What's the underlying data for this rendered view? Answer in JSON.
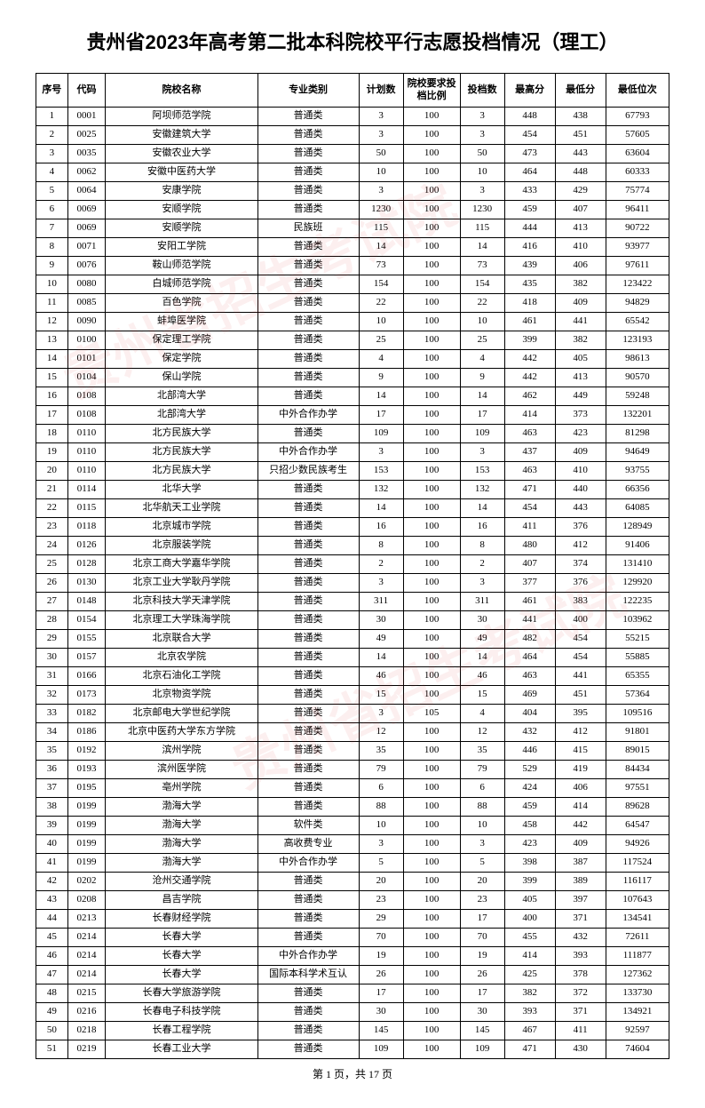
{
  "title": "贵州省2023年高考第二批本科院校平行志愿投档情况（理工）",
  "footer": "第 1 页，共 17 页",
  "watermark": "贵州省招生考试院",
  "columns": [
    {
      "label": "序号",
      "width": "5%"
    },
    {
      "label": "代码",
      "width": "6%"
    },
    {
      "label": "院校名称",
      "width": "24%"
    },
    {
      "label": "专业类别",
      "width": "16%"
    },
    {
      "label": "计划数",
      "width": "7%"
    },
    {
      "label": "院校要求投档比例",
      "width": "9%"
    },
    {
      "label": "投档数",
      "width": "7%"
    },
    {
      "label": "最高分",
      "width": "8%"
    },
    {
      "label": "最低分",
      "width": "8%"
    },
    {
      "label": "最低位次",
      "width": "10%"
    }
  ],
  "rows": [
    [
      "1",
      "0001",
      "阿坝师范学院",
      "普通类",
      "3",
      "100",
      "3",
      "448",
      "438",
      "67793"
    ],
    [
      "2",
      "0025",
      "安徽建筑大学",
      "普通类",
      "3",
      "100",
      "3",
      "454",
      "451",
      "57605"
    ],
    [
      "3",
      "0035",
      "安徽农业大学",
      "普通类",
      "50",
      "100",
      "50",
      "473",
      "443",
      "63604"
    ],
    [
      "4",
      "0062",
      "安徽中医药大学",
      "普通类",
      "10",
      "100",
      "10",
      "464",
      "448",
      "60333"
    ],
    [
      "5",
      "0064",
      "安康学院",
      "普通类",
      "3",
      "100",
      "3",
      "433",
      "429",
      "75774"
    ],
    [
      "6",
      "0069",
      "安顺学院",
      "普通类",
      "1230",
      "100",
      "1230",
      "459",
      "407",
      "96411"
    ],
    [
      "7",
      "0069",
      "安顺学院",
      "民族班",
      "115",
      "100",
      "115",
      "444",
      "413",
      "90722"
    ],
    [
      "8",
      "0071",
      "安阳工学院",
      "普通类",
      "14",
      "100",
      "14",
      "416",
      "410",
      "93977"
    ],
    [
      "9",
      "0076",
      "鞍山师范学院",
      "普通类",
      "73",
      "100",
      "73",
      "439",
      "406",
      "97611"
    ],
    [
      "10",
      "0080",
      "白城师范学院",
      "普通类",
      "154",
      "100",
      "154",
      "435",
      "382",
      "123422"
    ],
    [
      "11",
      "0085",
      "百色学院",
      "普通类",
      "22",
      "100",
      "22",
      "418",
      "409",
      "94829"
    ],
    [
      "12",
      "0090",
      "蚌埠医学院",
      "普通类",
      "10",
      "100",
      "10",
      "461",
      "441",
      "65542"
    ],
    [
      "13",
      "0100",
      "保定理工学院",
      "普通类",
      "25",
      "100",
      "25",
      "399",
      "382",
      "123193"
    ],
    [
      "14",
      "0101",
      "保定学院",
      "普通类",
      "4",
      "100",
      "4",
      "442",
      "405",
      "98613"
    ],
    [
      "15",
      "0104",
      "保山学院",
      "普通类",
      "9",
      "100",
      "9",
      "442",
      "413",
      "90570"
    ],
    [
      "16",
      "0108",
      "北部湾大学",
      "普通类",
      "14",
      "100",
      "14",
      "462",
      "449",
      "59248"
    ],
    [
      "17",
      "0108",
      "北部湾大学",
      "中外合作办学",
      "17",
      "100",
      "17",
      "414",
      "373",
      "132201"
    ],
    [
      "18",
      "0110",
      "北方民族大学",
      "普通类",
      "109",
      "100",
      "109",
      "463",
      "423",
      "81298"
    ],
    [
      "19",
      "0110",
      "北方民族大学",
      "中外合作办学",
      "3",
      "100",
      "3",
      "437",
      "409",
      "94649"
    ],
    [
      "20",
      "0110",
      "北方民族大学",
      "只招少数民族考生",
      "153",
      "100",
      "153",
      "463",
      "410",
      "93755"
    ],
    [
      "21",
      "0114",
      "北华大学",
      "普通类",
      "132",
      "100",
      "132",
      "471",
      "440",
      "66356"
    ],
    [
      "22",
      "0115",
      "北华航天工业学院",
      "普通类",
      "14",
      "100",
      "14",
      "454",
      "443",
      "64085"
    ],
    [
      "23",
      "0118",
      "北京城市学院",
      "普通类",
      "16",
      "100",
      "16",
      "411",
      "376",
      "128949"
    ],
    [
      "24",
      "0126",
      "北京服装学院",
      "普通类",
      "8",
      "100",
      "8",
      "480",
      "412",
      "91406"
    ],
    [
      "25",
      "0128",
      "北京工商大学嘉华学院",
      "普通类",
      "2",
      "100",
      "2",
      "407",
      "374",
      "131410"
    ],
    [
      "26",
      "0130",
      "北京工业大学耿丹学院",
      "普通类",
      "3",
      "100",
      "3",
      "377",
      "376",
      "129920"
    ],
    [
      "27",
      "0148",
      "北京科技大学天津学院",
      "普通类",
      "311",
      "100",
      "311",
      "461",
      "383",
      "122235"
    ],
    [
      "28",
      "0154",
      "北京理工大学珠海学院",
      "普通类",
      "30",
      "100",
      "30",
      "441",
      "400",
      "103962"
    ],
    [
      "29",
      "0155",
      "北京联合大学",
      "普通类",
      "49",
      "100",
      "49",
      "482",
      "454",
      "55215"
    ],
    [
      "30",
      "0157",
      "北京农学院",
      "普通类",
      "14",
      "100",
      "14",
      "464",
      "454",
      "55885"
    ],
    [
      "31",
      "0166",
      "北京石油化工学院",
      "普通类",
      "46",
      "100",
      "46",
      "463",
      "441",
      "65355"
    ],
    [
      "32",
      "0173",
      "北京物资学院",
      "普通类",
      "15",
      "100",
      "15",
      "469",
      "451",
      "57364"
    ],
    [
      "33",
      "0182",
      "北京邮电大学世纪学院",
      "普通类",
      "3",
      "105",
      "4",
      "404",
      "395",
      "109516"
    ],
    [
      "34",
      "0186",
      "北京中医药大学东方学院",
      "普通类",
      "12",
      "100",
      "12",
      "432",
      "412",
      "91801"
    ],
    [
      "35",
      "0192",
      "滨州学院",
      "普通类",
      "35",
      "100",
      "35",
      "446",
      "415",
      "89015"
    ],
    [
      "36",
      "0193",
      "滨州医学院",
      "普通类",
      "79",
      "100",
      "79",
      "529",
      "419",
      "84434"
    ],
    [
      "37",
      "0195",
      "亳州学院",
      "普通类",
      "6",
      "100",
      "6",
      "424",
      "406",
      "97551"
    ],
    [
      "38",
      "0199",
      "渤海大学",
      "普通类",
      "88",
      "100",
      "88",
      "459",
      "414",
      "89628"
    ],
    [
      "39",
      "0199",
      "渤海大学",
      "软件类",
      "10",
      "100",
      "10",
      "458",
      "442",
      "64547"
    ],
    [
      "40",
      "0199",
      "渤海大学",
      "高收费专业",
      "3",
      "100",
      "3",
      "423",
      "409",
      "94926"
    ],
    [
      "41",
      "0199",
      "渤海大学",
      "中外合作办学",
      "5",
      "100",
      "5",
      "398",
      "387",
      "117524"
    ],
    [
      "42",
      "0202",
      "沧州交通学院",
      "普通类",
      "20",
      "100",
      "20",
      "399",
      "389",
      "116117"
    ],
    [
      "43",
      "0208",
      "昌吉学院",
      "普通类",
      "23",
      "100",
      "23",
      "405",
      "397",
      "107643"
    ],
    [
      "44",
      "0213",
      "长春财经学院",
      "普通类",
      "29",
      "100",
      "17",
      "400",
      "371",
      "134541"
    ],
    [
      "45",
      "0214",
      "长春大学",
      "普通类",
      "70",
      "100",
      "70",
      "455",
      "432",
      "72611"
    ],
    [
      "46",
      "0214",
      "长春大学",
      "中外合作办学",
      "19",
      "100",
      "19",
      "414",
      "393",
      "111877"
    ],
    [
      "47",
      "0214",
      "长春大学",
      "国际本科学术互认",
      "26",
      "100",
      "26",
      "425",
      "378",
      "127362"
    ],
    [
      "48",
      "0215",
      "长春大学旅游学院",
      "普通类",
      "17",
      "100",
      "17",
      "382",
      "372",
      "133730"
    ],
    [
      "49",
      "0216",
      "长春电子科技学院",
      "普通类",
      "30",
      "100",
      "30",
      "393",
      "371",
      "134921"
    ],
    [
      "50",
      "0218",
      "长春工程学院",
      "普通类",
      "145",
      "100",
      "145",
      "467",
      "411",
      "92597"
    ],
    [
      "51",
      "0219",
      "长春工业大学",
      "普通类",
      "109",
      "100",
      "109",
      "471",
      "430",
      "74604"
    ]
  ]
}
